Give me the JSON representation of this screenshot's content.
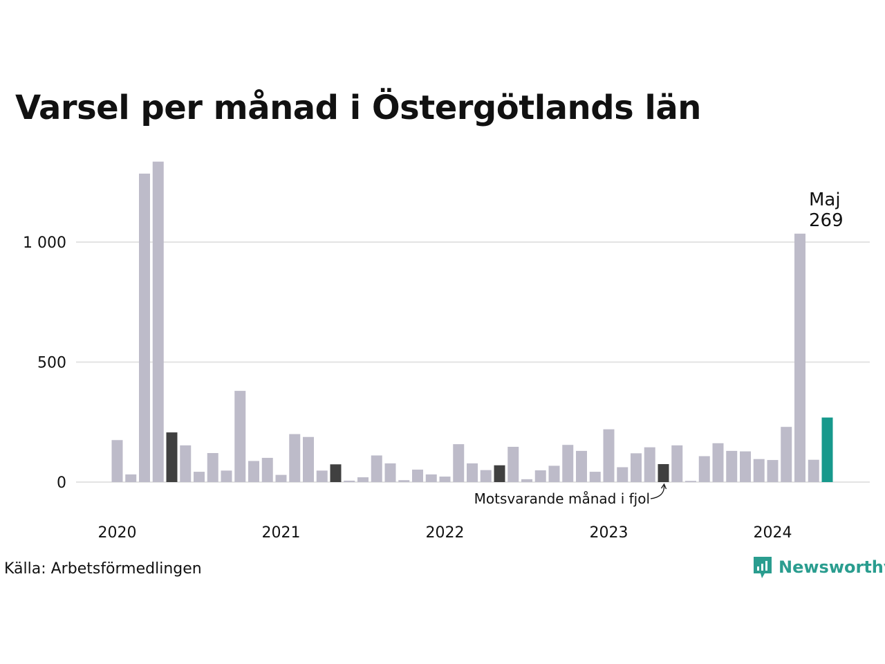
{
  "title": "Varsel per månad i Östergötlands län",
  "source": "Källa: Arbetsförmedlingen",
  "logo": {
    "text": "Newsworthy",
    "color": "#2a9d8f",
    "icon": "newsworthy-logo-icon"
  },
  "colors": {
    "bar": "#bdbbc9",
    "same_month_last_year": "#404040",
    "latest": "#17998c",
    "grid": "#e3e3e3",
    "text": "#111111"
  },
  "annotations": {
    "latest_label": "Maj",
    "latest_value_label": "269",
    "same_month_note": "Motsvarande månad i fjol"
  },
  "chart_data": {
    "type": "bar",
    "title": "Varsel per månad i Östergötlands län",
    "xlabel": "",
    "ylabel": "",
    "ylim": [
      0,
      1360
    ],
    "yticks": [
      {
        "value": 0,
        "label": "0"
      },
      {
        "value": 500,
        "label": "500"
      },
      {
        "value": 1000,
        "label": "1 000"
      }
    ],
    "xticks": [
      "2020",
      "2021",
      "2022",
      "2023",
      "2024"
    ],
    "grid": true,
    "highlight_latest": "Maj 2024",
    "highlight_same_month_previous_years": "Maj",
    "categories": [
      "2020-01",
      "2020-02",
      "2020-03",
      "2020-04",
      "2020-05",
      "2020-06",
      "2020-07",
      "2020-08",
      "2020-09",
      "2020-10",
      "2020-11",
      "2020-12",
      "2021-01",
      "2021-02",
      "2021-03",
      "2021-04",
      "2021-05",
      "2021-06",
      "2021-07",
      "2021-08",
      "2021-09",
      "2021-10",
      "2021-11",
      "2021-12",
      "2022-01",
      "2022-02",
      "2022-03",
      "2022-04",
      "2022-05",
      "2022-06",
      "2022-07",
      "2022-08",
      "2022-09",
      "2022-10",
      "2022-11",
      "2022-12",
      "2023-01",
      "2023-02",
      "2023-03",
      "2023-04",
      "2023-05",
      "2023-06",
      "2023-07",
      "2023-08",
      "2023-09",
      "2023-10",
      "2023-11",
      "2023-12",
      "2024-01",
      "2024-02",
      "2024-03",
      "2024-04",
      "2024-05"
    ],
    "values": [
      175,
      32,
      1285,
      1335,
      207,
      153,
      43,
      121,
      48,
      380,
      88,
      101,
      30,
      200,
      188,
      48,
      74,
      6,
      20,
      111,
      78,
      8,
      52,
      32,
      23,
      158,
      78,
      50,
      70,
      147,
      12,
      49,
      68,
      155,
      130,
      43,
      220,
      62,
      120,
      145,
      75,
      153,
      5,
      108,
      162,
      130,
      128,
      96,
      92,
      230,
      1035,
      93,
      269
    ]
  }
}
